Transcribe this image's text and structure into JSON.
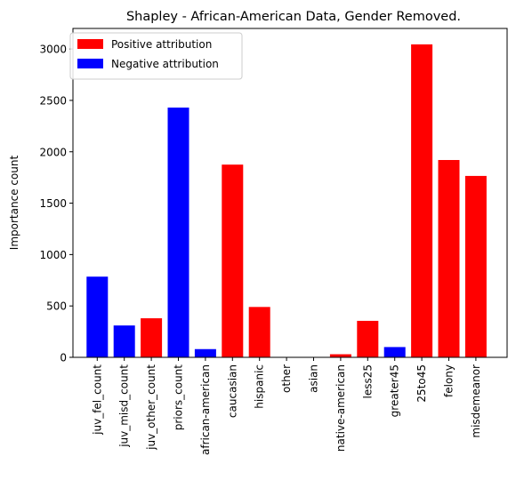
{
  "chart_data": {
    "type": "bar",
    "title": "Shapley - African-American Data, Gender Removed.",
    "xlabel": "",
    "ylabel": "Importance count",
    "ylim": [
      0,
      3200
    ],
    "yticks": [
      0,
      500,
      1000,
      1500,
      2000,
      2500,
      3000
    ],
    "categories": [
      "juv_fel_count",
      "juv_misd_count",
      "juv_other_count",
      "priors_count",
      "african-american",
      "caucasian",
      "hispanic",
      "other",
      "asian",
      "native-american",
      "less25",
      "greater45",
      "25to45",
      "felony",
      "misdemeanor"
    ],
    "values": [
      785,
      310,
      380,
      2430,
      80,
      1875,
      490,
      0,
      0,
      30,
      355,
      100,
      3045,
      1920,
      1765
    ],
    "attribution": [
      "negative",
      "negative",
      "positive",
      "negative",
      "negative",
      "positive",
      "positive",
      "positive",
      "positive",
      "positive",
      "positive",
      "negative",
      "positive",
      "positive",
      "positive"
    ],
    "colors": {
      "positive": "#ff0000",
      "negative": "#0000ff"
    },
    "legend": {
      "placement": "top-left",
      "entries": [
        {
          "key": "positive",
          "label": "Positive attribution"
        },
        {
          "key": "negative",
          "label": "Negative attribution"
        }
      ]
    },
    "grid": false
  }
}
